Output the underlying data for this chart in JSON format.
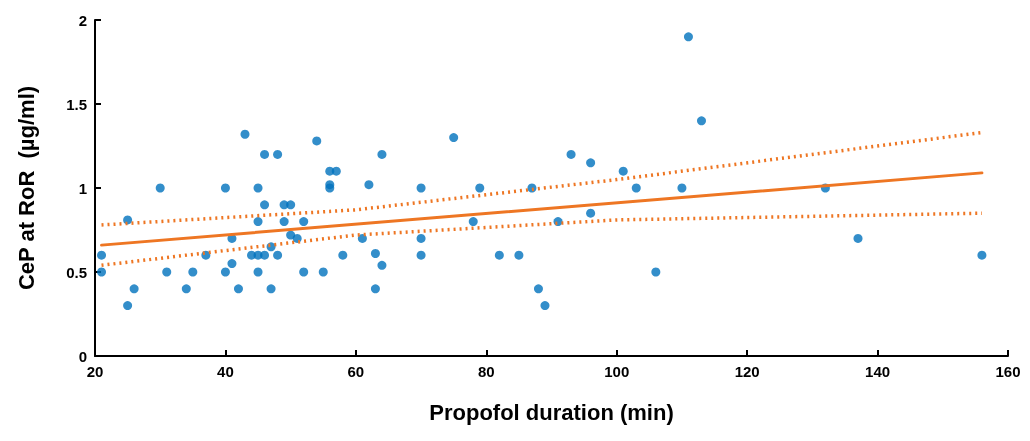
{
  "chart_data": {
    "type": "scatter",
    "xlabel": "Propofol duration (min)",
    "ylabel": "CeP at RoR  (µg/ml)",
    "xlim": [
      20,
      160
    ],
    "xticks": [
      20,
      40,
      60,
      80,
      100,
      120,
      140,
      160
    ],
    "ylim": [
      0,
      2
    ],
    "yticks": [
      0,
      0.5,
      1,
      1.5,
      2
    ],
    "grid": false,
    "series": [
      {
        "color": "#0072bd",
        "marker": "circle",
        "x": [
          21,
          21,
          25,
          25,
          26,
          30,
          31,
          34,
          35,
          37,
          40,
          40,
          41,
          41,
          42,
          43,
          44,
          45,
          45,
          45,
          45,
          46,
          46,
          46,
          47,
          47,
          48,
          48,
          49,
          49,
          50,
          50,
          51,
          52,
          52,
          54,
          55,
          56,
          56,
          56,
          57,
          58,
          61,
          62,
          63,
          63,
          64,
          64,
          70,
          70,
          70,
          75,
          78,
          79,
          82,
          85,
          87,
          88,
          89,
          91,
          93,
          96,
          96,
          101,
          103,
          106,
          110,
          111,
          113,
          132,
          137,
          156
        ],
        "values": [
          0.6,
          0.5,
          0.81,
          0.3,
          0.4,
          1.0,
          0.5,
          0.4,
          0.5,
          0.6,
          1.0,
          0.5,
          0.7,
          0.55,
          0.4,
          1.32,
          0.6,
          1.0,
          0.8,
          0.6,
          0.5,
          1.2,
          0.9,
          0.6,
          0.65,
          0.4,
          1.2,
          0.6,
          0.9,
          0.8,
          0.9,
          0.72,
          0.7,
          0.8,
          0.5,
          1.28,
          0.5,
          1.1,
          1.02,
          1.0,
          1.1,
          0.6,
          0.7,
          1.02,
          0.61,
          0.4,
          1.2,
          0.54,
          1.0,
          0.7,
          0.6,
          1.3,
          0.8,
          1.0,
          0.6,
          0.6,
          1.0,
          0.4,
          0.3,
          0.8,
          1.2,
          1.15,
          0.85,
          1.1,
          1.0,
          0.5,
          1.0,
          1.9,
          1.4,
          1.0,
          0.7,
          0.6
        ]
      },
      {
        "type": "line",
        "color": "#ee7623",
        "marker": "none",
        "line_style": "solid",
        "x": [
          21,
          156
        ],
        "values": [
          0.66,
          1.09
        ]
      },
      {
        "type": "line",
        "color": "#ee7623",
        "marker": "none",
        "line_style": "dotted",
        "x": [
          21,
          60,
          100,
          156
        ],
        "values": [
          0.78,
          0.87,
          1.05,
          1.33
        ]
      },
      {
        "type": "line",
        "color": "#ee7623",
        "marker": "none",
        "line_style": "dotted",
        "x": [
          21,
          60,
          100,
          156
        ],
        "values": [
          0.54,
          0.72,
          0.81,
          0.85
        ]
      }
    ]
  }
}
